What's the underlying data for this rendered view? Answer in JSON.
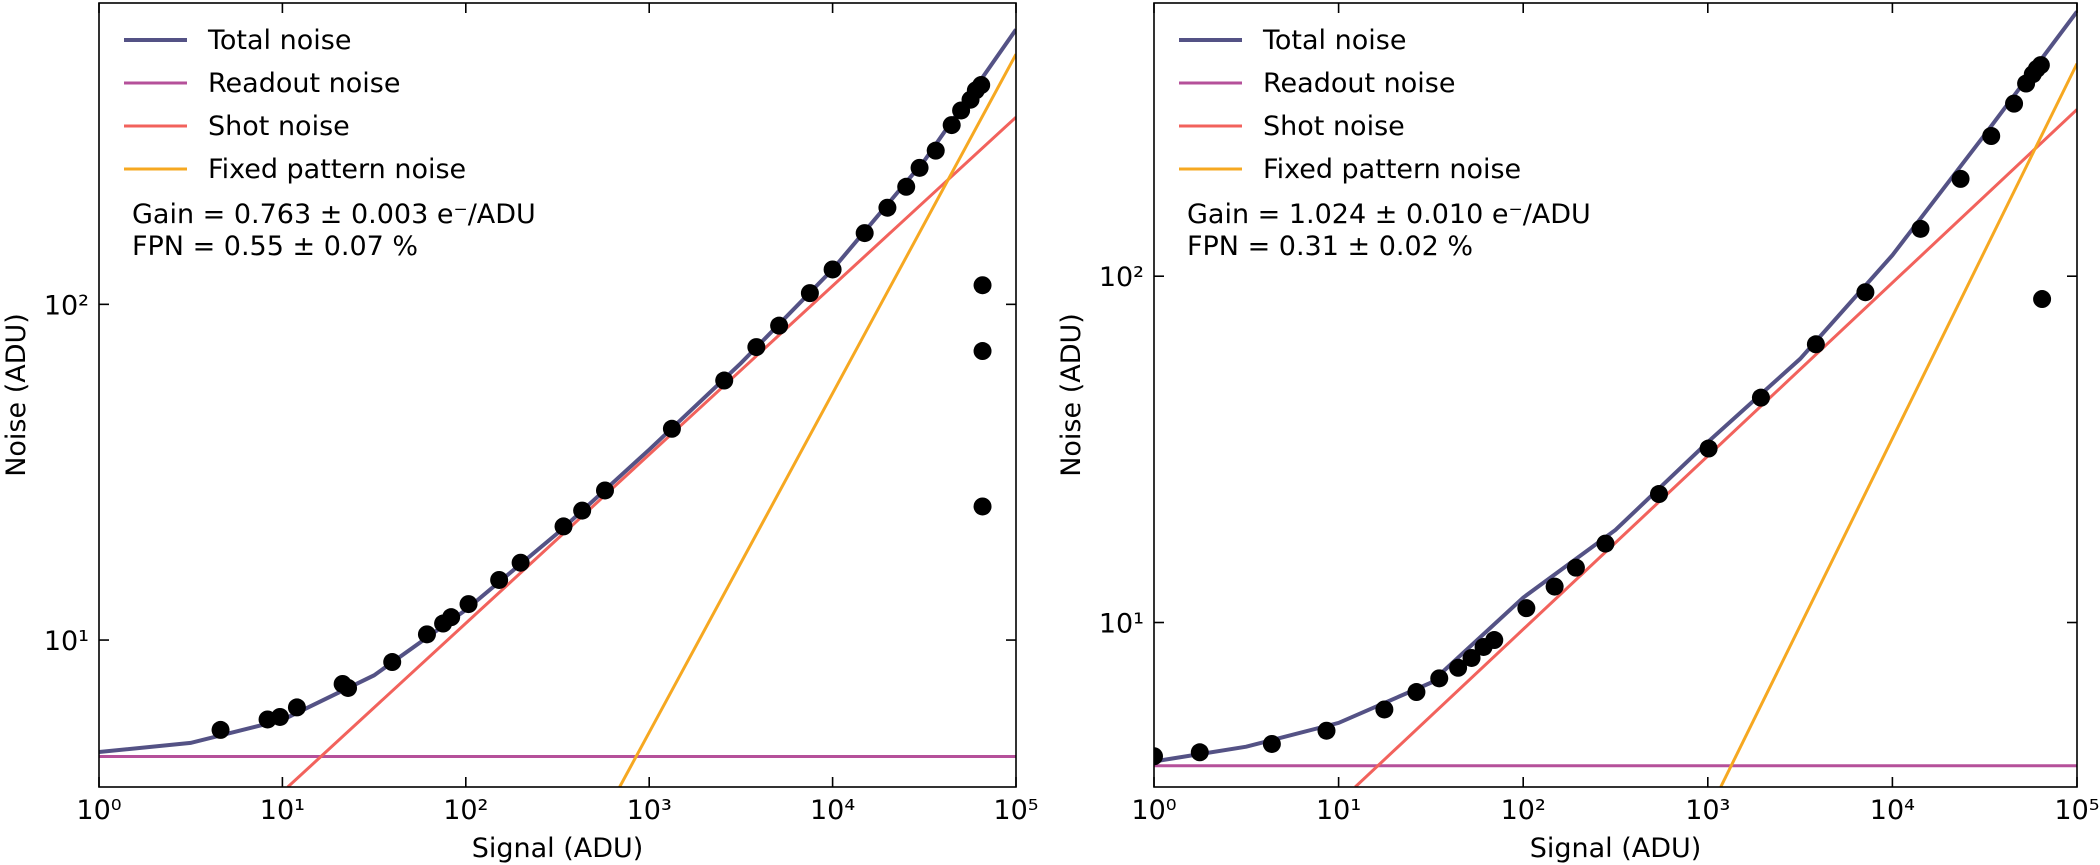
{
  "chart_data": [
    {
      "type": "line",
      "xscale": "log",
      "yscale": "log",
      "legend": "upper left",
      "xlabel": "Signal (ADU)",
      "ylabel": "Noise (ADU)",
      "xlim": [
        1,
        100000
      ],
      "ylim": [
        3.65,
        790
      ],
      "xticks": [
        {
          "value": 1,
          "label": "10⁰"
        },
        {
          "value": 10,
          "label": "10¹"
        },
        {
          "value": 100,
          "label": "10²"
        },
        {
          "value": 1000,
          "label": "10³"
        },
        {
          "value": 10000,
          "label": "10⁴"
        },
        {
          "value": 100000,
          "label": "10⁵"
        }
      ],
      "yticks": [
        {
          "value": 10,
          "label": "10¹"
        },
        {
          "value": 100,
          "label": "10²"
        }
      ],
      "annotations": [
        "Gain = 0.763 ± 0.003 e⁻/ADU",
        "FPN = 0.55 ± 0.07 %"
      ],
      "series": [
        {
          "name": "Total noise",
          "color": "#545285",
          "x": [
            1,
            3.16,
            10,
            31.6,
            100,
            316,
            1000,
            3162,
            10000,
            31623,
            100000
          ],
          "values": [
            4.64,
            4.94,
            5.78,
            7.85,
            12.3,
            20.8,
            36.9,
            66.8,
            127.1,
            267.8,
            658.5
          ]
        },
        {
          "name": "Readout noise",
          "color": "#b5509a",
          "x": [
            1,
            100000
          ],
          "values": [
            4.5,
            4.5
          ]
        },
        {
          "name": "Shot noise",
          "color": "#f2625c",
          "x": [
            10.7,
            100000
          ],
          "values": [
            3.65,
            361
          ]
        },
        {
          "name": "Fixed pattern noise",
          "color": "#f6a821",
          "x": [
            690,
            100000
          ],
          "values": [
            3.65,
            556
          ]
        }
      ],
      "points": {
        "color": "#000000",
        "x": [
          4.6,
          8.3,
          9.7,
          12.0,
          21.3,
          22.8,
          39.7,
          61.4,
          75.2,
          83.2,
          103.5,
          152,
          199,
          341,
          431,
          574,
          1330,
          2565,
          3840,
          5110,
          7520,
          10000,
          14960,
          19900,
          25200,
          29800,
          36500,
          44600,
          50200,
          56500,
          60400,
          64600,
          65700,
          65700,
          65700
        ],
        "values": [
          5.4,
          5.8,
          5.9,
          6.3,
          7.4,
          7.2,
          8.6,
          10.4,
          11.2,
          11.7,
          12.8,
          15.1,
          17.0,
          21.8,
          24.3,
          27.9,
          42.6,
          59.3,
          74.6,
          86.4,
          108,
          127,
          163,
          194,
          224,
          255,
          287,
          342,
          378,
          407,
          434,
          450,
          114,
          72.6,
          25.0
        ]
      }
    },
    {
      "type": "line",
      "xscale": "log",
      "yscale": "log",
      "legend": "upper left",
      "xlabel": "Signal (ADU)",
      "ylabel": "Noise (ADU)",
      "xlim": [
        1,
        100000
      ],
      "ylim": [
        3.35,
        615
      ],
      "xticks": [
        {
          "value": 1,
          "label": "10⁰"
        },
        {
          "value": 10,
          "label": "10¹"
        },
        {
          "value": 100,
          "label": "10²"
        },
        {
          "value": 1000,
          "label": "10³"
        },
        {
          "value": 10000,
          "label": "10⁴"
        },
        {
          "value": 100000,
          "label": "10⁵"
        }
      ],
      "yticks": [
        {
          "value": 10,
          "label": "10¹"
        },
        {
          "value": 100,
          "label": "10²"
        }
      ],
      "annotations": [
        "Gain = 1.024 ± 0.010 e⁻/ADU",
        "FPN = 0.31 ± 0.02 %"
      ],
      "series": [
        {
          "name": "Total noise",
          "color": "#545285",
          "x": [
            1,
            3.16,
            10,
            31.6,
            100,
            316,
            1000,
            3162,
            10000,
            31623,
            100000
          ],
          "values": [
            3.97,
            4.38,
            5.13,
            6.7,
            11.8,
            18.5,
            33.2,
            57.7,
            115,
            256,
            581
          ]
        },
        {
          "name": "Readout noise",
          "color": "#b5509a",
          "x": [
            1,
            100000
          ],
          "values": [
            3.86,
            3.86
          ]
        },
        {
          "name": "Shot noise",
          "color": "#f2625c",
          "x": [
            12.3,
            100000
          ],
          "values": [
            3.35,
            303
          ]
        },
        {
          "name": "Fixed pattern noise",
          "color": "#f6a821",
          "x": [
            1175,
            100000
          ],
          "values": [
            3.35,
            411
          ]
        }
      ],
      "points": {
        "color": "#000000",
        "x": [
          1.0,
          1.77,
          4.35,
          8.6,
          17.7,
          26.4,
          35.1,
          44.4,
          52.5,
          61.0,
          69.7,
          104,
          148,
          193,
          279,
          544,
          1010,
          1940,
          3850,
          7140,
          14200,
          23400,
          34300,
          45600,
          53000,
          57600,
          60600,
          63700,
          64700
        ],
        "values": [
          4.11,
          4.22,
          4.46,
          4.87,
          5.61,
          6.3,
          6.9,
          7.4,
          7.9,
          8.5,
          8.9,
          11.0,
          12.7,
          14.4,
          16.9,
          23.5,
          31.8,
          44.6,
          63.6,
          89.9,
          137,
          191,
          254,
          315,
          360,
          383,
          397,
          407,
          85.9
        ]
      }
    }
  ]
}
